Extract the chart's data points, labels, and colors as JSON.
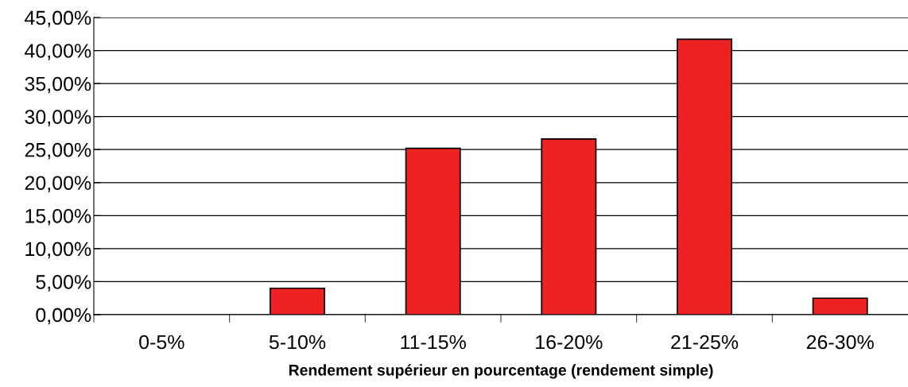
{
  "chart_data": {
    "type": "bar",
    "xlabel": "Rendement supérieur en pourcentage (rendement simple)",
    "categories": [
      "0-5%",
      "5-10%",
      "11-15%",
      "16-20%",
      "21-25%",
      "26-30%"
    ],
    "values": [
      0,
      4.0,
      25.2,
      26.6,
      41.7,
      2.5
    ],
    "color": "#ee2222",
    "ylim": [
      0,
      45
    ],
    "yticks": [
      {
        "value": 0,
        "label": "0,00%"
      },
      {
        "value": 5,
        "label": "5,00%"
      },
      {
        "value": 10,
        "label": "10,00%"
      },
      {
        "value": 15,
        "label": "15,00%"
      },
      {
        "value": 20,
        "label": "20,00%"
      },
      {
        "value": 25,
        "label": "25,00%"
      },
      {
        "value": 30,
        "label": "30,00%"
      },
      {
        "value": 35,
        "label": "35,00%"
      },
      {
        "value": 40,
        "label": "40,00%"
      },
      {
        "value": 45,
        "label": "45,00%"
      }
    ],
    "grid": "y",
    "legend": false
  }
}
